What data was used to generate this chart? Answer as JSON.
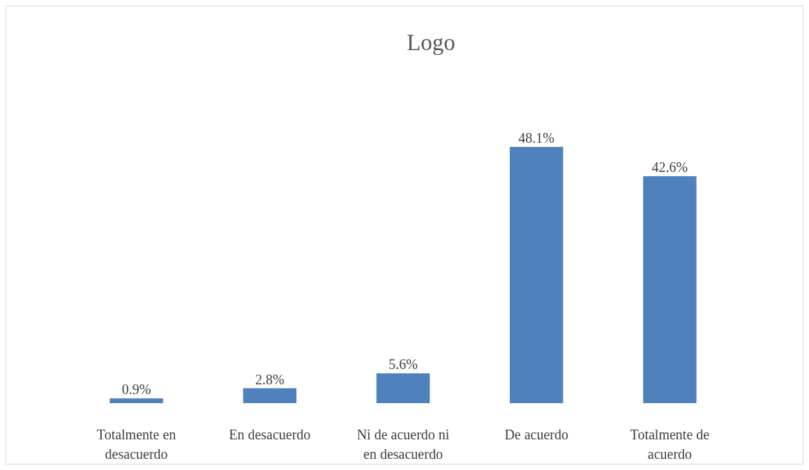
{
  "chart_data": {
    "type": "bar",
    "title": "Logo",
    "categories": [
      "Totalmente en desacuerdo",
      "En desacuerdo",
      "Ni de acuerdo ni en desacuerdo",
      "De acuerdo",
      "Totalmente de acuerdo"
    ],
    "values": [
      0.9,
      2.8,
      5.6,
      48.1,
      42.6
    ],
    "value_labels": [
      "0.9%",
      "2.8%",
      "5.6%",
      "48.1%",
      "42.6%"
    ],
    "color": "#4f81bd"
  }
}
